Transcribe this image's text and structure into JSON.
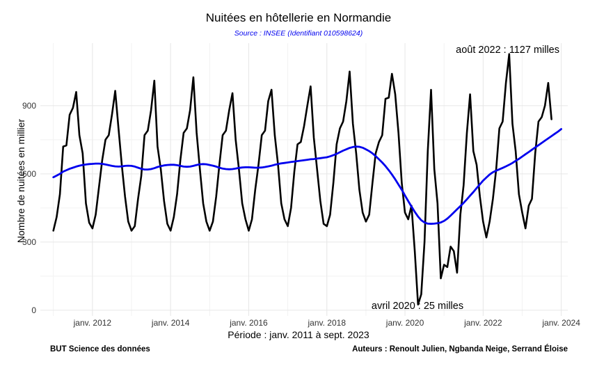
{
  "chart_data": {
    "type": "line",
    "title": "Nuitées en hôtellerie en Normandie",
    "subtitle": "Source : INSEE (Identifiant 010598624)",
    "xlabel": "Période : janv. 2011 à sept. 2023",
    "ylabel": "Nombre de nuitées en millier",
    "x_start": "2011-01",
    "x_tick_labels": [
      "janv. 2012",
      "janv. 2014",
      "janv. 2016",
      "janv. 2018",
      "janv. 2020",
      "janv. 2022",
      "janv. 2024"
    ],
    "y_ticks": [
      0,
      300,
      600,
      900
    ],
    "xlim": [
      "2010-09",
      "2024-03"
    ],
    "ylim": [
      -25,
      1175
    ],
    "grid": true,
    "series": [
      {
        "color": "#000000",
        "values": [
          350,
          410,
          510,
          720,
          725,
          860,
          890,
          960,
          770,
          690,
          470,
          385,
          360,
          420,
          540,
          660,
          750,
          770,
          860,
          965,
          800,
          640,
          500,
          390,
          350,
          370,
          490,
          590,
          770,
          790,
          880,
          1010,
          720,
          620,
          480,
          380,
          350,
          410,
          510,
          660,
          780,
          800,
          880,
          1025,
          780,
          620,
          470,
          390,
          350,
          390,
          500,
          640,
          770,
          790,
          880,
          955,
          750,
          620,
          470,
          400,
          350,
          400,
          530,
          640,
          770,
          790,
          920,
          970,
          770,
          640,
          470,
          400,
          370,
          450,
          610,
          730,
          740,
          810,
          900,
          985,
          760,
          620,
          480,
          380,
          370,
          420,
          560,
          730,
          800,
          830,
          920,
          1050,
          820,
          690,
          530,
          430,
          390,
          420,
          560,
          690,
          740,
          770,
          930,
          935,
          1040,
          950,
          780,
          560,
          430,
          400,
          460,
          260,
          25,
          70,
          300,
          700,
          970,
          620,
          470,
          140,
          200,
          190,
          280,
          260,
          165,
          420,
          550,
          780,
          950,
          700,
          640,
          500,
          390,
          320,
          390,
          490,
          620,
          800,
          830,
          1000,
          1127,
          820,
          700,
          510,
          430,
          360,
          460,
          490,
          690,
          830,
          850,
          900,
          1000,
          840
        ]
      },
      {
        "color": "#0000ee",
        "values": [
          585,
          592,
          600,
          610,
          616,
          622,
          627,
          632,
          636,
          639,
          641,
          643,
          644,
          645,
          645,
          644,
          641,
          638,
          635,
          633,
          632,
          633,
          635,
          636,
          635,
          632,
          627,
          622,
          619,
          619,
          621,
          625,
          630,
          634,
          637,
          639,
          640,
          640,
          638,
          635,
          632,
          631,
          632,
          635,
          639,
          642,
          643,
          642,
          639,
          636,
          632,
          627,
          623,
          621,
          620,
          621,
          623,
          626,
          628,
          629,
          629,
          628,
          627,
          627,
          628,
          630,
          633,
          636,
          640,
          643,
          646,
          648,
          650,
          652,
          654,
          656,
          658,
          660,
          662,
          664,
          665,
          667,
          669,
          671,
          673,
          677,
          682,
          688,
          695,
          702,
          708,
          714,
          718,
          720,
          719,
          715,
          708,
          700,
          690,
          678,
          664,
          650,
          634,
          616,
          597,
          576,
          553,
          530,
          505,
          480,
          456,
          433,
          412,
          396,
          386,
          381,
          380,
          381,
          383,
          386,
          393,
          403,
          416,
          430,
          444,
          458,
          472,
          488,
          504,
          520,
          537,
          554,
          570,
          584,
          597,
          607,
          614,
          620,
          626,
          633,
          640,
          648,
          657,
          666,
          676,
          686,
          696,
          706,
          716,
          726,
          736,
          746,
          756,
          766,
          776,
          786,
          797
        ]
      }
    ],
    "annotations": [
      {
        "label": "août 2022 : 1127 milles",
        "date": "2022-08",
        "value": 1127
      },
      {
        "label": "avril 2020 : 25 milles",
        "date": "2020-04",
        "value": 25
      }
    ]
  },
  "footer": {
    "left": "BUT Science des données",
    "right": "Auteurs : Renoult Julien, Ngbanda Neige, Serrand Éloise"
  }
}
